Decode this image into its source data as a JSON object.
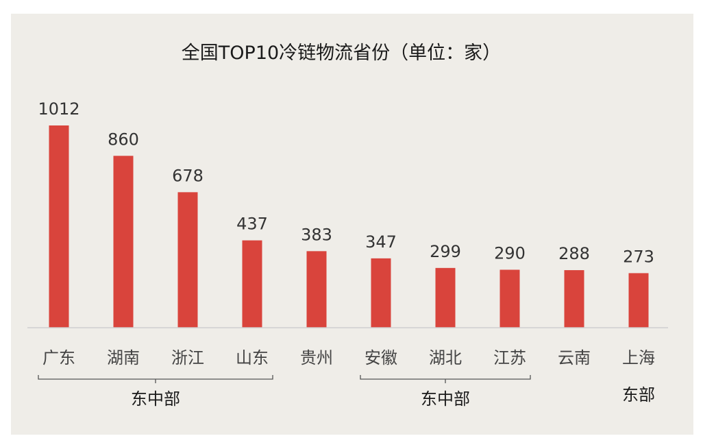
{
  "chart_data": {
    "type": "bar",
    "title": "全国TOP10冷链物流省份（单位：家）",
    "categories": [
      "广东",
      "湖南",
      "浙江",
      "山东",
      "贵州",
      "安徽",
      "湖北",
      "江苏",
      "云南",
      "上海"
    ],
    "values": [
      1012,
      860,
      678,
      437,
      383,
      347,
      299,
      290,
      288,
      273
    ],
    "xlabel": "",
    "ylabel": "",
    "ylim": [
      0,
      1012
    ],
    "grid": false,
    "legend": "none",
    "bar_color": "#d9443c",
    "groups": [
      {
        "label": "东中部",
        "from": 0,
        "to": 3
      },
      {
        "label": "东中部",
        "from": 5,
        "to": 7
      },
      {
        "label": "东部",
        "from": 9,
        "to": 9
      }
    ]
  }
}
